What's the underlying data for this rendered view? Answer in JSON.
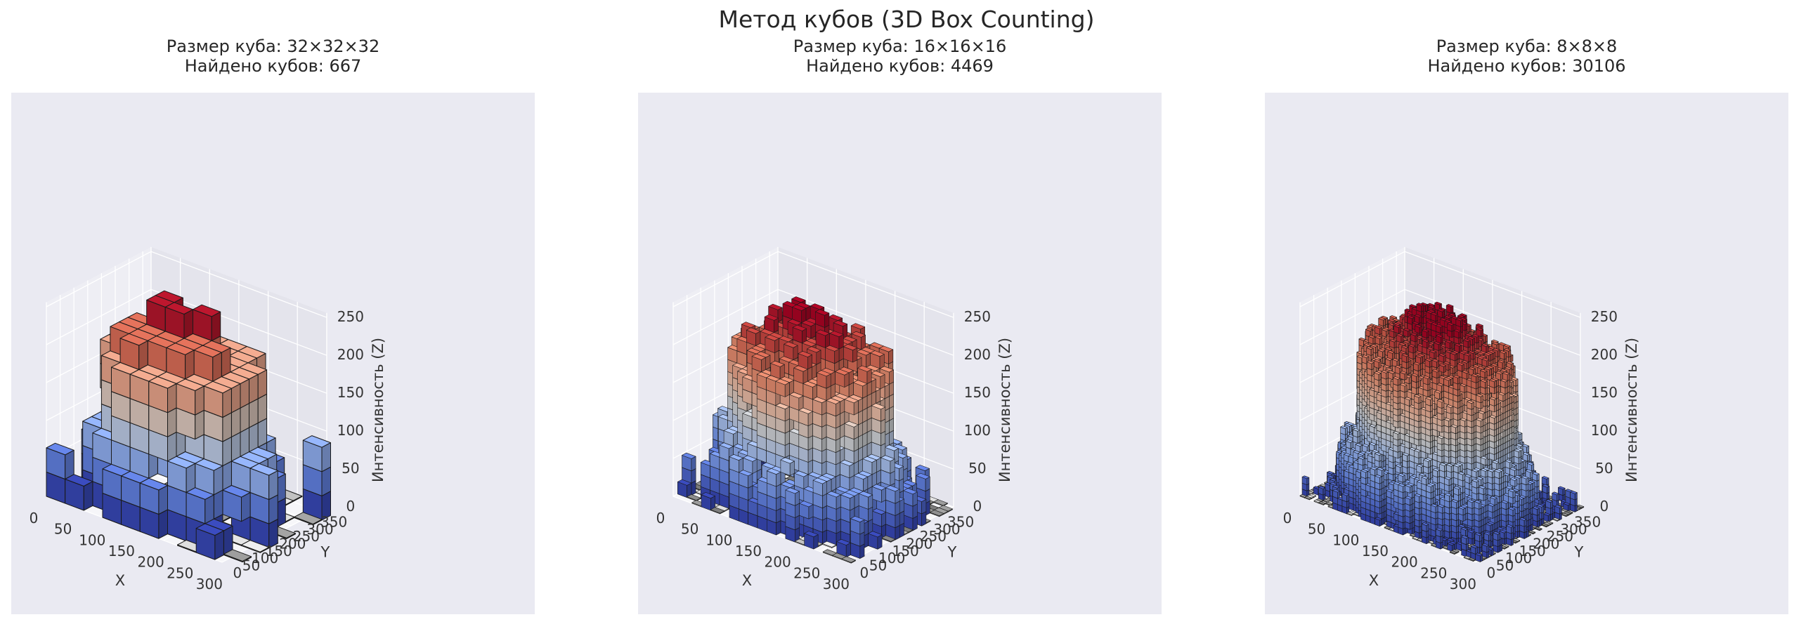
{
  "figure": {
    "suptitle": "Метод кубов (3D Box Counting)"
  },
  "colors": {
    "axes_background": "#eaeaf2",
    "pane_back": "#e4e4ec",
    "pane_side": "#eeeef4",
    "pane_floor": "#f6f6f9",
    "grid": "#ffffff",
    "edge": "#1a1a1a",
    "colormap": "coolwarm",
    "floor_shadow": "#777777"
  },
  "chart_data": [
    {
      "type": "3d-voxel",
      "title_line1": "Размер куба: 32×32×32",
      "title_line2": "Найдено кубов: 667",
      "box_size": 32,
      "box_count": 667,
      "xlabel": "X",
      "ylabel": "Y",
      "zlabel": "Интенсивность (Z)",
      "xticks": [
        0,
        50,
        100,
        150,
        200,
        250,
        300
      ],
      "yticks": [
        0,
        50,
        100,
        150,
        200,
        250,
        300,
        350
      ],
      "zticks": [
        0,
        50,
        100,
        150,
        200,
        250
      ],
      "xlim": [
        0,
        300
      ],
      "ylim": [
        0,
        380
      ],
      "zlim": [
        0,
        256
      ],
      "colormap": "coolwarm"
    },
    {
      "type": "3d-voxel",
      "title_line1": "Размер куба: 16×16×16",
      "title_line2": "Найдено кубов: 4469",
      "box_size": 16,
      "box_count": 4469,
      "xlabel": "X",
      "ylabel": "Y",
      "zlabel": "Интенсивность (Z)",
      "xticks": [
        0,
        50,
        100,
        150,
        200,
        250,
        300
      ],
      "yticks": [
        0,
        50,
        100,
        150,
        200,
        250,
        300,
        350
      ],
      "zticks": [
        0,
        50,
        100,
        150,
        200,
        250
      ],
      "xlim": [
        0,
        300
      ],
      "ylim": [
        0,
        380
      ],
      "zlim": [
        0,
        256
      ],
      "colormap": "coolwarm"
    },
    {
      "type": "3d-voxel",
      "title_line1": "Размер куба: 8×8×8",
      "title_line2": "Найдено кубов: 30106",
      "box_size": 8,
      "box_count": 30106,
      "xlabel": "X",
      "ylabel": "Y",
      "zlabel": "Интенсивность (Z)",
      "xticks": [
        0,
        50,
        100,
        150,
        200,
        250,
        300
      ],
      "yticks": [
        0,
        50,
        100,
        150,
        200,
        250,
        300,
        350
      ],
      "zticks": [
        0,
        50,
        100,
        150,
        200,
        250
      ],
      "xlim": [
        0,
        300
      ],
      "ylim": [
        0,
        380
      ],
      "zlim": [
        0,
        256
      ],
      "colormap": "coolwarm"
    }
  ]
}
